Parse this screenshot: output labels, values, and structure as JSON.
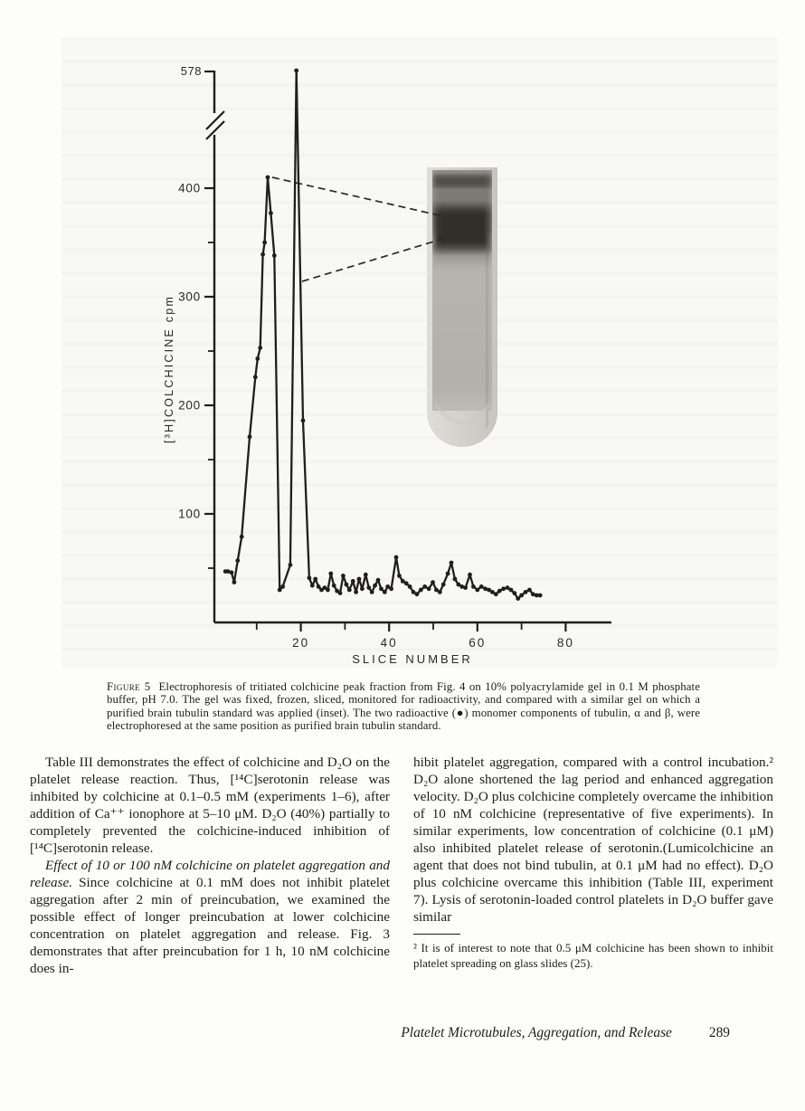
{
  "colors": {
    "ink": "#1e1d1b",
    "paper": "#fdfdfb",
    "photo_background": "#f8f8f5",
    "gel_band_dark": "#35332d"
  },
  "figure_caption": {
    "label": "Figure 5",
    "text": "Electrophoresis of tritiated colchicine peak fraction from Fig. 4 on 10% polyacrylamide gel in 0.1 M phosphate buffer, pH 7.0. The gel was fixed, frozen, sliced, monitored for radioactivity, and compared with a similar gel on which a purified brain tubulin standard was applied (inset). The two radioactive (●) monomer components of tubulin, α and β, were electrophoresed at the same position as purified brain tubulin standard."
  },
  "chart_data": {
    "type": "line",
    "title": "",
    "xlabel": "SLICE NUMBER",
    "ylabel": "[³H]COLCHICINE cpm",
    "marker": "filled-circle",
    "xlim": [
      0,
      90
    ],
    "ylim": [
      0,
      578
    ],
    "y_axis_break": true,
    "y_axis_top_label": "578",
    "x_ticks_labeled": [
      20,
      40,
      60,
      80
    ],
    "x_ticks_minor": [
      10,
      30,
      50,
      70
    ],
    "y_ticks_labeled": [
      100,
      200,
      300,
      400
    ],
    "y_ticks_minor": [
      50,
      150,
      250,
      350
    ],
    "grid": false,
    "legend": "none",
    "annotations": {
      "peaks": [
        {
          "slice": 12.5,
          "cpm": 410,
          "note": "first tubulin monomer peak, dashed line to gel band top"
        },
        {
          "slice": 19.0,
          "cpm": 578,
          "note": "second peak, off-scale above axis break"
        }
      ],
      "dashed_connectors": "two dashed lines from chart peaks to dark tubulin band of gel inset",
      "inset": "photograph of polyacrylamide gel tube with dark purified brain tubulin standard band near top"
    },
    "series": [
      {
        "name": "[³H]colchicine cpm",
        "points": [
          [
            2.9,
            47
          ],
          [
            3.5,
            47
          ],
          [
            4.3,
            46
          ],
          [
            4.9,
            37
          ],
          [
            5.7,
            57
          ],
          [
            6.6,
            79
          ],
          [
            8.4,
            171
          ],
          [
            9.7,
            226
          ],
          [
            10.2,
            243
          ],
          [
            10.8,
            253
          ],
          [
            11.4,
            339
          ],
          [
            11.8,
            350
          ],
          [
            12.5,
            410
          ],
          [
            13.2,
            377
          ],
          [
            14.0,
            338
          ],
          [
            15.2,
            30
          ],
          [
            15.9,
            33
          ],
          [
            17.6,
            53
          ],
          [
            19.0,
            578
          ],
          [
            20.5,
            186
          ],
          [
            21.9,
            41
          ],
          [
            22.6,
            34
          ],
          [
            23.3,
            40
          ],
          [
            24.0,
            33
          ],
          [
            24.7,
            30
          ],
          [
            25.4,
            32
          ],
          [
            26.1,
            30
          ],
          [
            26.8,
            45
          ],
          [
            27.5,
            34
          ],
          [
            28.2,
            29
          ],
          [
            28.9,
            27
          ],
          [
            29.6,
            43
          ],
          [
            30.3,
            35
          ],
          [
            31.0,
            30
          ],
          [
            31.8,
            38
          ],
          [
            32.5,
            28
          ],
          [
            33.2,
            40
          ],
          [
            33.9,
            31
          ],
          [
            34.7,
            44
          ],
          [
            35.4,
            32
          ],
          [
            36.1,
            28
          ],
          [
            36.8,
            34
          ],
          [
            37.5,
            39
          ],
          [
            38.2,
            31
          ],
          [
            39.0,
            28
          ],
          [
            39.7,
            33
          ],
          [
            40.5,
            31
          ],
          [
            41.6,
            60
          ],
          [
            42.3,
            43
          ],
          [
            43.1,
            38
          ],
          [
            43.9,
            36
          ],
          [
            44.7,
            33
          ],
          [
            45.5,
            28
          ],
          [
            46.3,
            26
          ],
          [
            47.2,
            30
          ],
          [
            48.1,
            33
          ],
          [
            49.0,
            31
          ],
          [
            49.9,
            37
          ],
          [
            50.7,
            30
          ],
          [
            51.5,
            28
          ],
          [
            52.3,
            35
          ],
          [
            53.3,
            45
          ],
          [
            54.1,
            55
          ],
          [
            54.9,
            40
          ],
          [
            55.7,
            35
          ],
          [
            56.5,
            33
          ],
          [
            57.3,
            32
          ],
          [
            58.3,
            44
          ],
          [
            59.1,
            33
          ],
          [
            60.0,
            30
          ],
          [
            60.9,
            33
          ],
          [
            61.8,
            31
          ],
          [
            62.6,
            30
          ],
          [
            63.4,
            28
          ],
          [
            64.2,
            26
          ],
          [
            65.0,
            29
          ],
          [
            65.9,
            31
          ],
          [
            66.8,
            32
          ],
          [
            67.6,
            30
          ],
          [
            68.4,
            27
          ],
          [
            69.2,
            22
          ],
          [
            70.0,
            25
          ],
          [
            70.9,
            28
          ],
          [
            71.8,
            30
          ],
          [
            72.6,
            26
          ],
          [
            73.4,
            25
          ],
          [
            74.2,
            25
          ]
        ]
      }
    ]
  },
  "body": {
    "left_para1": "Table III demonstrates the effect of colchicine and D₂O on the platelet release reaction. Thus, [¹⁴C]serotonin release was inhibited by colchicine at 0.1–0.5 mM (experiments 1–6), after addition of Ca⁺⁺ ionophore at 5–10 μM. D₂O (40%) partially to completely prevented the colchicine-induced inhibition of [¹⁴C]serotonin release.",
    "left_para2_lead": "Effect of 10 or 100 nM colchicine on platelet aggregation and release.",
    "left_para2_rest": "Since colchicine at 0.1 mM does not inhibit platelet aggregation after 2 min of preincubation, we examined the possible effect of longer preincubation at lower colchicine concentration on platelet aggregation and release. Fig. 3 demonstrates that after preincubation for 1 h, 10 nM colchicine does in-",
    "right_para": "hibit platelet aggregation, compared with a control incubation.² D₂O alone shortened the lag period and enhanced aggregation velocity. D₂O plus colchicine completely overcame the inhibition of 10 nM colchicine (representative of five experiments). In similar experiments, low concentration of colchicine (0.1 μM) also inhibited platelet release of serotonin.(Lumicolchicine an agent that does not bind tubulin, at 0.1 μM had no effect). D₂O plus colchicine overcame this inhibition (Table III, experiment 7). Lysis of serotonin-loaded control platelets in D₂O buffer gave similar",
    "footnote_text": "² It is of interest to note that 0.5 μM colchicine has been shown to inhibit platelet spreading on glass slides (25)."
  },
  "footer": {
    "running_title": "Platelet Microtubules, Aggregation, and Release",
    "page_number": "289"
  }
}
